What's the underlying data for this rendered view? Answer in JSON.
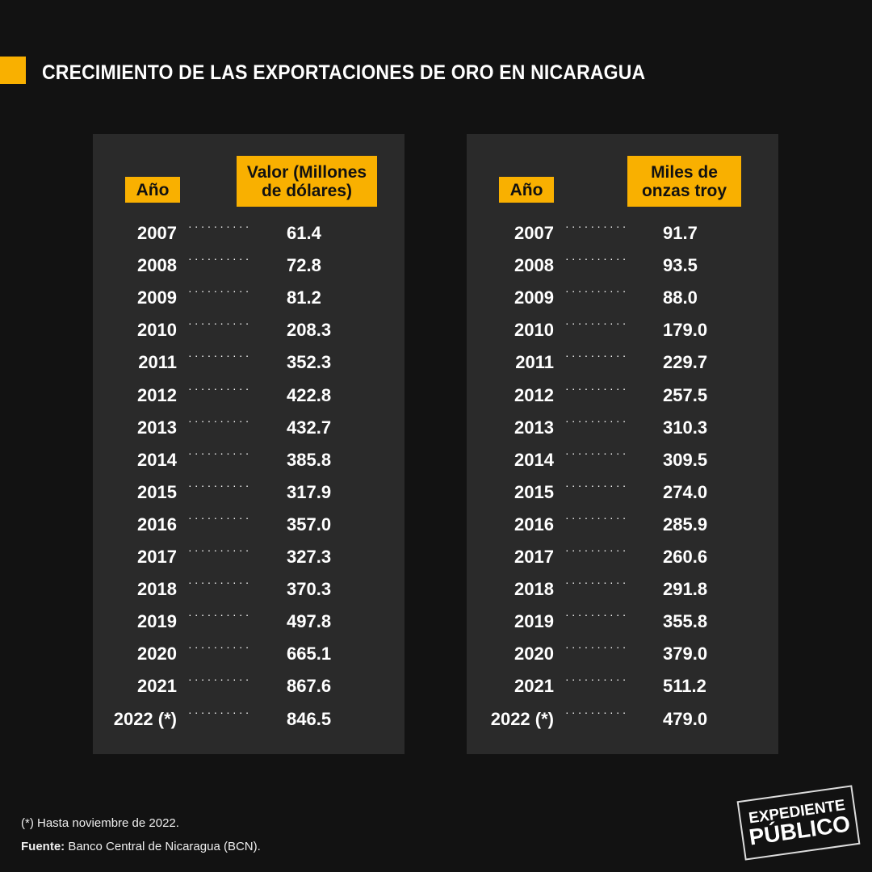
{
  "title": "CRECIMIENTO DE LAS EXPORTACIONES DE ORO EN NICARAGUA",
  "colors": {
    "accent": "#f9b000",
    "background": "#121212",
    "panel": "#2a2a2a"
  },
  "chart_data": [
    {
      "type": "table",
      "columns": [
        "Año",
        "Valor (Millones de dólares)"
      ],
      "years": [
        "2007",
        "2008",
        "2009",
        "2010",
        "2011",
        "2012",
        "2013",
        "2014",
        "2015",
        "2016",
        "2017",
        "2018",
        "2019",
        "2020",
        "2021",
        "2022 (*)"
      ],
      "values": [
        "61.4",
        "72.8",
        "81.2",
        "208.3",
        "352.3",
        "422.8",
        "432.7",
        "385.8",
        "317.9",
        "357.0",
        "327.3",
        "370.3",
        "497.8",
        "665.1",
        "867.6",
        "846.5"
      ]
    },
    {
      "type": "table",
      "columns": [
        "Año",
        "Miles de onzas troy"
      ],
      "years": [
        "2007",
        "2008",
        "2009",
        "2010",
        "2011",
        "2012",
        "2013",
        "2014",
        "2015",
        "2016",
        "2017",
        "2018",
        "2019",
        "2020",
        "2021",
        "2022 (*)"
      ],
      "values": [
        "91.7",
        "93.5",
        "88.0",
        "179.0",
        "229.7",
        "257.5",
        "310.3",
        "309.5",
        "274.0",
        "285.9",
        "260.6",
        "291.8",
        "355.8",
        "379.0",
        "511.2",
        "479.0"
      ]
    }
  ],
  "footnote": "(*) Hasta noviembre de 2022.",
  "source_label": "Fuente:",
  "source_text": " Banco Central de Nicaragua (BCN).",
  "logo": {
    "line1": "EXPEDIENTE",
    "line2": "PÚBLICO"
  }
}
